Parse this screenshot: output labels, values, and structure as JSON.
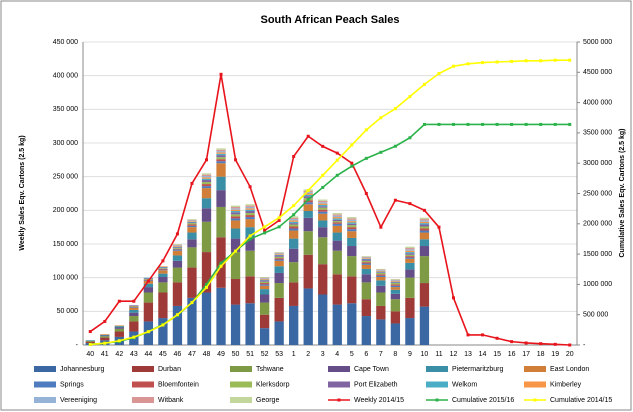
{
  "chart_data": {
    "type": "bar",
    "title": "South African Peach Sales",
    "y_label": "Weekly Sales Eqv. Cartons (2.5 kg)",
    "y2_label": "Cumulative Sales Eqv. Cartons (2.5 kg)",
    "stacked": true,
    "grid": true,
    "legend": "bottom",
    "categories": [
      "40",
      "41",
      "42",
      "43",
      "44",
      "45",
      "46",
      "47",
      "48",
      "49",
      "50",
      "51",
      "52",
      "53",
      "1",
      "2",
      "3",
      "4",
      "5",
      "6",
      "7",
      "8",
      "9",
      "10",
      "11",
      "12",
      "13",
      "14",
      "15",
      "16",
      "17",
      "18",
      "19",
      "20"
    ],
    "ylim": [
      0,
      450000
    ],
    "yticks": [
      {
        "value": 0,
        "label": "-"
      },
      {
        "value": 50000,
        "label": "50 000"
      },
      {
        "value": 100000,
        "label": "100 000"
      },
      {
        "value": 150000,
        "label": "150 000"
      },
      {
        "value": 200000,
        "label": "200 000"
      },
      {
        "value": 250000,
        "label": "250 000"
      },
      {
        "value": 300000,
        "label": "300 000"
      },
      {
        "value": 350000,
        "label": "350 000"
      },
      {
        "value": 400000,
        "label": "400 000"
      },
      {
        "value": 450000,
        "label": "450 000"
      }
    ],
    "y2lim": [
      0,
      5000000
    ],
    "y2ticks": [
      {
        "value": 0,
        "label": "-"
      },
      {
        "value": 500000,
        "label": "500 000"
      },
      {
        "value": 1000000,
        "label": "1000 000"
      },
      {
        "value": 1500000,
        "label": "1500 000"
      },
      {
        "value": 2000000,
        "label": "2000 000"
      },
      {
        "value": 2500000,
        "label": "2500 000"
      },
      {
        "value": 3000000,
        "label": "3000 000"
      },
      {
        "value": 3500000,
        "label": "3500 000"
      },
      {
        "value": 4000000,
        "label": "4000 000"
      },
      {
        "value": 4500000,
        "label": "4500 000"
      },
      {
        "value": 5000000,
        "label": "5000 000"
      }
    ],
    "series": [
      {
        "name": "Johannesburg",
        "color": "#3b68a3",
        "kind": "bar",
        "values": [
          3000,
          7000,
          12000,
          20000,
          35000,
          40000,
          58000,
          70000,
          78000,
          85000,
          60000,
          62000,
          25000,
          35000,
          58000,
          84000,
          75000,
          60000,
          62000,
          43000,
          38000,
          32000,
          40000,
          57000,
          null,
          null,
          null,
          null,
          null,
          null,
          null,
          null,
          null,
          null
        ]
      },
      {
        "name": "Durban",
        "color": "#9e3a38",
        "kind": "bar",
        "values": [
          2000,
          4000,
          8000,
          15000,
          28000,
          38000,
          35000,
          45000,
          60000,
          75000,
          38000,
          40000,
          20000,
          35000,
          35000,
          50000,
          45000,
          45000,
          40000,
          25000,
          20000,
          18000,
          30000,
          35000,
          null,
          null,
          null,
          null,
          null,
          null,
          null,
          null,
          null,
          null
        ]
      },
      {
        "name": "Tshwane",
        "color": "#7e9a44",
        "kind": "bar",
        "values": [
          1000,
          2000,
          4000,
          8000,
          15000,
          15000,
          22000,
          30000,
          45000,
          45000,
          40000,
          38000,
          18000,
          22000,
          30000,
          35000,
          40000,
          35000,
          30000,
          25000,
          20000,
          18000,
          30000,
          40000,
          null,
          null,
          null,
          null,
          null,
          null,
          null,
          null,
          null,
          null
        ]
      },
      {
        "name": "Cape Town",
        "color": "#654e87",
        "kind": "bar",
        "values": [
          0,
          1000,
          2000,
          5000,
          8000,
          8000,
          10000,
          12000,
          20000,
          25000,
          20000,
          20000,
          12000,
          15000,
          20000,
          20000,
          15000,
          15000,
          15000,
          12000,
          10000,
          8000,
          12000,
          15000,
          null,
          null,
          null,
          null,
          null,
          null,
          null,
          null,
          null,
          null
        ]
      },
      {
        "name": "Pietermaritzburg",
        "color": "#3a8fa6",
        "kind": "bar",
        "values": [
          1000,
          1000,
          2000,
          4000,
          5000,
          5000,
          8000,
          10000,
          15000,
          20000,
          15000,
          15000,
          8000,
          10000,
          15000,
          10000,
          10000,
          12000,
          12000,
          8000,
          8000,
          6000,
          10000,
          10000,
          null,
          null,
          null,
          null,
          null,
          null,
          null,
          null,
          null,
          null
        ]
      },
      {
        "name": "East London",
        "color": "#d17f38",
        "kind": "bar",
        "values": [
          0,
          1000,
          1000,
          3000,
          4000,
          5000,
          7000,
          8000,
          15000,
          20000,
          12000,
          12000,
          5000,
          8000,
          12000,
          10000,
          10000,
          10000,
          10000,
          6000,
          5000,
          4000,
          6000,
          10000,
          null,
          null,
          null,
          null,
          null,
          null,
          null,
          null,
          null,
          null
        ]
      },
      {
        "name": "Springs",
        "color": "#4f7cbf",
        "kind": "bar",
        "values": [
          0,
          0,
          0,
          1000,
          1000,
          1000,
          2000,
          2000,
          3000,
          3000,
          3000,
          3000,
          2000,
          2000,
          3000,
          3000,
          3000,
          3000,
          3000,
          2000,
          2000,
          2000,
          2000,
          3000,
          null,
          null,
          null,
          null,
          null,
          null,
          null,
          null,
          null,
          null
        ]
      },
      {
        "name": "Bloemfontein",
        "color": "#c0504d",
        "kind": "bar",
        "values": [
          0,
          0,
          0,
          1000,
          1000,
          1000,
          1000,
          2000,
          3000,
          3000,
          3000,
          3000,
          2000,
          2000,
          3000,
          3000,
          3000,
          2000,
          3000,
          2000,
          2000,
          2000,
          2000,
          3000,
          null,
          null,
          null,
          null,
          null,
          null,
          null,
          null,
          null,
          null
        ]
      },
      {
        "name": "Klerksdorp",
        "color": "#9bbb59",
        "kind": "bar",
        "values": [
          0,
          0,
          0,
          1000,
          1000,
          1000,
          1000,
          2000,
          3000,
          3000,
          3000,
          3000,
          2000,
          2000,
          3000,
          3000,
          3000,
          2000,
          3000,
          2000,
          2000,
          2000,
          2000,
          3000,
          null,
          null,
          null,
          null,
          null,
          null,
          null,
          null,
          null,
          null
        ]
      },
      {
        "name": "Port Elizabeth",
        "color": "#8064a2",
        "kind": "bar",
        "values": [
          0,
          0,
          0,
          1000,
          1000,
          1000,
          1000,
          1000,
          3000,
          3000,
          3000,
          3000,
          2000,
          2000,
          2000,
          3000,
          2000,
          2000,
          2000,
          2000,
          1000,
          1000,
          2000,
          3000,
          null,
          null,
          null,
          null,
          null,
          null,
          null,
          null,
          null,
          null
        ]
      },
      {
        "name": "Welkom",
        "color": "#4bacc6",
        "kind": "bar",
        "values": [
          0,
          0,
          0,
          0,
          1000,
          1000,
          1000,
          1000,
          2000,
          2000,
          2000,
          2000,
          1000,
          1000,
          2000,
          2000,
          2000,
          2000,
          2000,
          1000,
          1000,
          1000,
          2000,
          2000,
          null,
          null,
          null,
          null,
          null,
          null,
          null,
          null,
          null,
          null
        ]
      },
      {
        "name": "Kimberley",
        "color": "#f79646",
        "kind": "bar",
        "values": [
          0,
          0,
          0,
          0,
          0,
          1000,
          1000,
          1000,
          2000,
          2000,
          2000,
          2000,
          1000,
          1000,
          2000,
          2000,
          2000,
          2000,
          2000,
          1000,
          1000,
          1000,
          2000,
          2000,
          null,
          null,
          null,
          null,
          null,
          null,
          null,
          null,
          null,
          null
        ]
      },
      {
        "name": "Vereeniging",
        "color": "#95b3d7",
        "kind": "bar",
        "values": [
          0,
          0,
          0,
          0,
          0,
          0,
          1000,
          1000,
          2000,
          2000,
          2000,
          2000,
          1000,
          1000,
          2000,
          2000,
          2000,
          2000,
          2000,
          1000,
          1000,
          1000,
          2000,
          2000,
          null,
          null,
          null,
          null,
          null,
          null,
          null,
          null,
          null,
          null
        ]
      },
      {
        "name": "Witbank",
        "color": "#d99694",
        "kind": "bar",
        "values": [
          0,
          0,
          0,
          0,
          0,
          0,
          1000,
          1000,
          2000,
          2000,
          2000,
          2000,
          1000,
          1000,
          2000,
          2000,
          2000,
          2000,
          2000,
          1000,
          1000,
          1000,
          2000,
          2000,
          null,
          null,
          null,
          null,
          null,
          null,
          null,
          null,
          null,
          null
        ]
      },
      {
        "name": "George",
        "color": "#c3d69b",
        "kind": "bar",
        "values": [
          0,
          0,
          0,
          0,
          0,
          0,
          1000,
          1000,
          2000,
          2000,
          2000,
          2000,
          1000,
          1000,
          2000,
          2000,
          2000,
          2000,
          2000,
          1000,
          1000,
          1000,
          2000,
          2000,
          null,
          null,
          null,
          null,
          null,
          null,
          null,
          null,
          null,
          null
        ]
      },
      {
        "name": "Weekly 2014/15",
        "color": "#e8141c",
        "kind": "line",
        "values": [
          20000,
          35000,
          65000,
          65000,
          95000,
          125000,
          165000,
          240000,
          275000,
          402000,
          275000,
          235000,
          170000,
          185000,
          280000,
          310000,
          295000,
          285000,
          270000,
          225000,
          175000,
          215000,
          210000,
          200000,
          175000,
          70000,
          15000,
          15000,
          10000,
          5000,
          3000,
          2000,
          1000,
          0
        ]
      },
      {
        "name": "Cumulative 2015/16",
        "color": "#2bb24a",
        "kind": "line",
        "axis": "y2",
        "values": [
          10000,
          30000,
          60000,
          120000,
          220000,
          340000,
          490000,
          700000,
          1000000,
          1350000,
          1550000,
          1750000,
          1850000,
          1950000,
          2150000,
          2400000,
          2600000,
          2800000,
          2950000,
          3080000,
          3180000,
          3280000,
          3420000,
          3640000,
          3640000,
          3640000,
          3640000,
          3640000,
          3640000,
          3640000,
          3640000,
          3640000,
          3640000,
          3640000
        ]
      },
      {
        "name": "Cumulative 2014/15",
        "color": "#ffff00",
        "kind": "line",
        "axis": "y2",
        "values": [
          10000,
          30000,
          70000,
          130000,
          220000,
          330000,
          500000,
          700000,
          950000,
          1300000,
          1550000,
          1800000,
          1950000,
          2100000,
          2300000,
          2550000,
          2800000,
          3050000,
          3300000,
          3550000,
          3750000,
          3900000,
          4100000,
          4300000,
          4480000,
          4600000,
          4640000,
          4660000,
          4670000,
          4680000,
          4690000,
          4690000,
          4700000,
          4700000
        ]
      }
    ]
  }
}
